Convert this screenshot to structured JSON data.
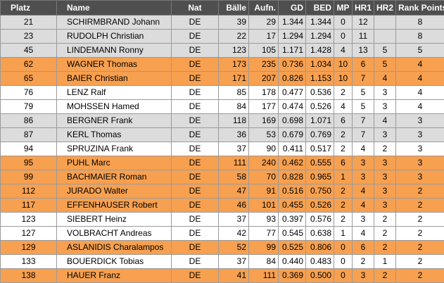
{
  "headers": [
    "Platz",
    "Name",
    "Nat",
    "Bälle",
    "Aufn.",
    "GD",
    "BED",
    "MP",
    "HR1",
    "HR2",
    "Rank Points"
  ],
  "colors": {
    "header": "#4f4f4f",
    "white": "#ffffff",
    "grey": "#dcdcdc",
    "orange": "#f7a050"
  },
  "rows": [
    {
      "style": "grey",
      "c": [
        "21",
        "SCHIRMBRAND Johann",
        "DE",
        "39",
        "29",
        "1.344",
        "1.344",
        "0",
        "12",
        "",
        "8"
      ]
    },
    {
      "style": "grey",
      "c": [
        "23",
        "RUDOLPH Christian",
        "DE",
        "22",
        "17",
        "1.294",
        "1.294",
        "0",
        "11",
        "",
        "8"
      ]
    },
    {
      "style": "grey",
      "c": [
        "45",
        "LINDEMANN Ronny",
        "DE",
        "123",
        "105",
        "1.171",
        "1.428",
        "4",
        "13",
        "5",
        "5"
      ]
    },
    {
      "style": "orange",
      "c": [
        "62",
        "WAGNER Thomas",
        "DE",
        "173",
        "235",
        "0.736",
        "1.034",
        "10",
        "6",
        "5",
        "4"
      ]
    },
    {
      "style": "orange",
      "c": [
        "65",
        "BAIER Christian",
        "DE",
        "171",
        "207",
        "0.826",
        "1.153",
        "10",
        "7",
        "4",
        "4"
      ]
    },
    {
      "style": "white",
      "c": [
        "76",
        "LENZ Ralf",
        "DE",
        "85",
        "178",
        "0.477",
        "0.536",
        "2",
        "5",
        "3",
        "4"
      ]
    },
    {
      "style": "white",
      "c": [
        "79",
        "MOHSSEN Hamed",
        "DE",
        "84",
        "177",
        "0.474",
        "0.526",
        "4",
        "5",
        "3",
        "4"
      ]
    },
    {
      "style": "grey",
      "c": [
        "86",
        "BERGNER Frank",
        "DE",
        "118",
        "169",
        "0.698",
        "1.071",
        "6",
        "7",
        "4",
        "3"
      ]
    },
    {
      "style": "grey",
      "c": [
        "87",
        "KERL Thomas",
        "DE",
        "36",
        "53",
        "0.679",
        "0.769",
        "2",
        "7",
        "3",
        "3"
      ]
    },
    {
      "style": "white",
      "c": [
        "94",
        "SPRUZINA Frank",
        "DE",
        "37",
        "90",
        "0.411",
        "0.517",
        "2",
        "4",
        "2",
        "3"
      ]
    },
    {
      "style": "orange",
      "c": [
        "95",
        "PUHL Marc",
        "DE",
        "111",
        "240",
        "0.462",
        "0.555",
        "6",
        "3",
        "3",
        "3"
      ]
    },
    {
      "style": "orange",
      "c": [
        "99",
        "BACHMAIER Roman",
        "DE",
        "58",
        "70",
        "0.828",
        "0.965",
        "1",
        "3",
        "3",
        "3"
      ]
    },
    {
      "style": "orange",
      "c": [
        "112",
        "JURADO Walter",
        "DE",
        "47",
        "91",
        "0.516",
        "0.750",
        "2",
        "4",
        "3",
        "2"
      ]
    },
    {
      "style": "orange",
      "c": [
        "117",
        "EFFENHAUSER Robert",
        "DE",
        "46",
        "101",
        "0.455",
        "0.526",
        "2",
        "4",
        "3",
        "2"
      ]
    },
    {
      "style": "white",
      "c": [
        "123",
        "SIEBERT Heinz",
        "DE",
        "37",
        "93",
        "0.397",
        "0.576",
        "2",
        "3",
        "2",
        "2"
      ]
    },
    {
      "style": "white",
      "c": [
        "127",
        "VOLBRACHT Andreas",
        "DE",
        "42",
        "77",
        "0.545",
        "0.638",
        "1",
        "4",
        "2",
        "2"
      ]
    },
    {
      "style": "orange",
      "c": [
        "129",
        "ASLANIDIS Charalampos",
        "DE",
        "52",
        "99",
        "0.525",
        "0.806",
        "0",
        "6",
        "2",
        "2"
      ]
    },
    {
      "style": "white",
      "c": [
        "133",
        "BOUERDICK Tobias",
        "DE",
        "37",
        "84",
        "0.440",
        "0.483",
        "0",
        "2",
        "1",
        "2"
      ]
    },
    {
      "style": "orange",
      "c": [
        "138",
        "HAUER Franz",
        "DE",
        "41",
        "111",
        "0.369",
        "0.500",
        "0",
        "3",
        "2",
        "2"
      ]
    }
  ]
}
